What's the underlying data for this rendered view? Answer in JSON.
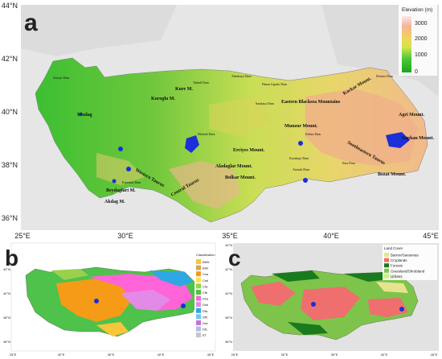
{
  "panels": {
    "a": {
      "letter": "a",
      "lat_ticks": [
        "44°N",
        "42°N",
        "40°N",
        "38°N",
        "36°N"
      ],
      "lon_ticks": [
        "25°E",
        "30°E",
        "35°E",
        "40°E",
        "45°E"
      ],
      "legend": {
        "title": "Elevation (m)",
        "ticks": [
          "3000",
          "2000",
          "1000",
          "0"
        ],
        "colors": [
          "#f7e9e9",
          "#f6b39a",
          "#f3d25c",
          "#d6e44a",
          "#4fc83a",
          "#1aa61c"
        ]
      },
      "labels": {
        "kure": "Kure M.",
        "koroglu": "Koroglu M.",
        "uludag": "Uludag",
        "eastern_blacksea": "Eastern Blacksea Mountains",
        "kackar": "Kackar Mount.",
        "agri": "Agri Mount.",
        "munzur": "Munzur Mount.",
        "suphan": "Suphan Mount.",
        "erciyes": "Erciyes Mount.",
        "southeastern_taurus": "Southeastern Taurus",
        "bozat": "Bozat Mount.",
        "aladaglar": "Aladaglar Mount.",
        "bolkar": "Bolkar Mount.",
        "central_taurus": "Central Taurus",
        "western_taurus": "Western Taurus",
        "beydaglari": "Beydaglari M.",
        "akdag": "Akdag M.",
        "hirfanli": "Hirfanli Dam",
        "ataturk": "Ataturk Dam",
        "keban": "Keban Dam",
        "altinkaya": "Altinkaya Dam",
        "hasan_ugurlu": "Hasan Ugurlu Dam",
        "sarikaya": "Sarikaya Dam",
        "karakaya": "Karakaya Dam",
        "ilisu": "Ilisu Dam",
        "sariyar": "Sariyar Dam",
        "deriner": "Deriner Dam",
        "ermenek": "Ermenek Dam",
        "tahtali": "Tahtali Dam"
      }
    },
    "b": {
      "letter": "b",
      "legend_title": "Classification",
      "lat_ticks": [
        "42°N",
        "40°N",
        "38°N",
        "36°N"
      ],
      "lon_ticks": [
        "25°E",
        "30°E",
        "35°E",
        "40°E",
        "45°E"
      ],
      "classes": [
        {
          "code": "BWk",
          "color": "#f7c63a"
        },
        {
          "code": "BSk",
          "color": "#d8a64c"
        },
        {
          "code": "Csa",
          "color": "#f59b18"
        },
        {
          "code": "Csb",
          "color": "#ffe04a"
        },
        {
          "code": "Cfa",
          "color": "#9ad04c"
        },
        {
          "code": "Cfb",
          "color": "#4ec24a"
        },
        {
          "code": "Dsa",
          "color": "#ff63d8"
        },
        {
          "code": "Dsb",
          "color": "#e38ae6"
        },
        {
          "code": "Dfa",
          "color": "#2fa7e3"
        },
        {
          "code": "Dfb",
          "color": "#6cc8f0"
        },
        {
          "code": "Dsc",
          "color": "#c471d6"
        },
        {
          "code": "Dfc",
          "color": "#b3b9ee"
        },
        {
          "code": "ET",
          "color": "#c6c6c6"
        }
      ]
    },
    "c": {
      "letter": "c",
      "legend_title": "Land Cover",
      "lat_ticks": [
        "44°N",
        "42°N",
        "40°N",
        "38°N",
        "36°N"
      ],
      "lon_ticks": [
        "25°E",
        "30°E",
        "35°E",
        "40°E",
        "45°E"
      ],
      "classes": [
        {
          "name": "Barren/Savannas",
          "color": "#e6e38f"
        },
        {
          "name": "Croplands",
          "color": "#ee6f6d"
        },
        {
          "name": "Forests",
          "color": "#1a7a1e"
        },
        {
          "name": "Grassland/Shrubland",
          "color": "#7ec44a"
        },
        {
          "name": "Urbans",
          "color": "#c9f07a"
        }
      ]
    }
  }
}
